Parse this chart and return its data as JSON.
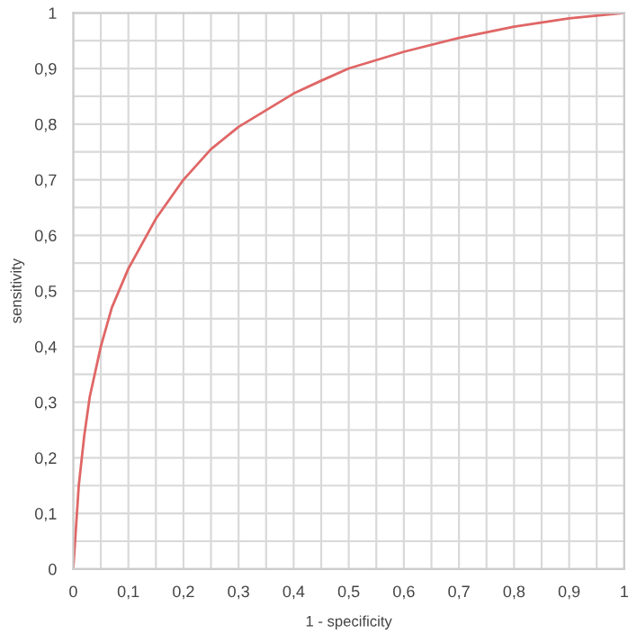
{
  "chart_data": {
    "type": "line",
    "xlabel": "1 - specificity",
    "ylabel": "sensitivity",
    "x": [
      0,
      0.01,
      0.02,
      0.03,
      0.05,
      0.07,
      0.1,
      0.15,
      0.2,
      0.25,
      0.3,
      0.35,
      0.4,
      0.45,
      0.5,
      0.6,
      0.7,
      0.8,
      0.9,
      1
    ],
    "series": [
      {
        "color": "#e06666",
        "values": [
          0,
          0.15,
          0.24,
          0.31,
          0.4,
          0.47,
          0.54,
          0.63,
          0.7,
          0.755,
          0.795,
          0.825,
          0.855,
          0.878,
          0.9,
          0.93,
          0.955,
          0.975,
          0.99,
          1
        ]
      }
    ],
    "xlim": [
      0,
      1
    ],
    "ylim": [
      0,
      1
    ],
    "xticks": [
      0,
      {
        "value": 0.1,
        "label": "0,1"
      },
      {
        "value": 0.2,
        "label": "0,2"
      },
      {
        "value": 0.3,
        "label": "0,3"
      },
      {
        "value": 0.4,
        "label": "0,4"
      },
      {
        "value": 0.5,
        "label": "0,5"
      },
      {
        "value": 0.6,
        "label": "0,6"
      },
      {
        "value": 0.7,
        "label": "0,7"
      },
      {
        "value": 0.8,
        "label": "0,8"
      },
      {
        "value": 0.9,
        "label": "0,9"
      },
      1
    ],
    "yticks": [
      0,
      {
        "value": 0.1,
        "label": "0,1"
      },
      {
        "value": 0.2,
        "label": "0,2"
      },
      {
        "value": 0.3,
        "label": "0,3"
      },
      {
        "value": 0.4,
        "label": "0,4"
      },
      {
        "value": 0.5,
        "label": "0,5"
      },
      {
        "value": 0.6,
        "label": "0,6"
      },
      {
        "value": 0.7,
        "label": "0,7"
      },
      {
        "value": 0.8,
        "label": "0,8"
      },
      {
        "value": 0.9,
        "label": "0,9"
      },
      1
    ],
    "grid": true,
    "legend": false,
    "marker": "none",
    "line_style": "solid"
  }
}
